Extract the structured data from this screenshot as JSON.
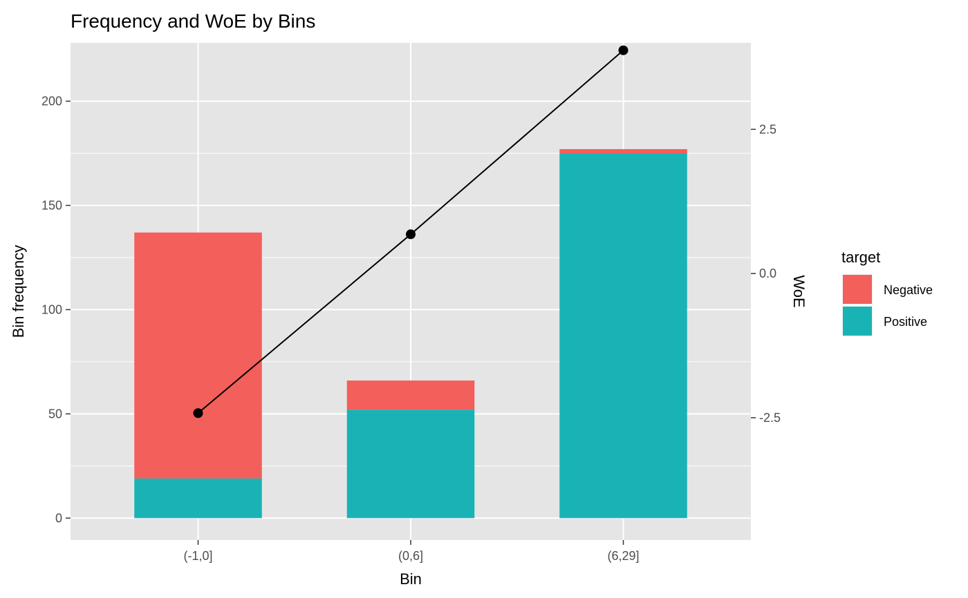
{
  "chart_data": {
    "type": "bar",
    "title": "Frequency and WoE by Bins",
    "xlabel": "Bin",
    "ylabel": "Bin frequency",
    "y2label": "WoE",
    "categories": [
      "(-1,0]",
      "(0,6]",
      "(6,29]"
    ],
    "stacked": true,
    "series": [
      {
        "name": "Positive",
        "values": [
          19,
          52,
          175
        ],
        "color": "#19B3B6"
      },
      {
        "name": "Negative",
        "values": [
          118,
          14,
          2
        ],
        "color": "#F35F5A"
      }
    ],
    "line_series": {
      "values": [
        -2.42,
        0.68,
        3.87
      ],
      "color": "#000000",
      "marker": "point"
    },
    "ylim": [
      -10.5,
      228
    ],
    "y2lim": [
      -4.62,
      4.0
    ],
    "yticks": [
      0,
      50,
      100,
      150,
      200
    ],
    "y2ticks": [
      -2.5,
      0.0,
      2.5
    ],
    "y2tick_labels": [
      "-2.5",
      "0.0",
      "2.5"
    ],
    "grid": true,
    "panel_background": "#E5E5E5",
    "legend": {
      "title": "target",
      "position": "right",
      "entries": [
        {
          "label": "Negative",
          "color": "#F35F5A"
        },
        {
          "label": "Positive",
          "color": "#19B3B6"
        }
      ]
    }
  }
}
